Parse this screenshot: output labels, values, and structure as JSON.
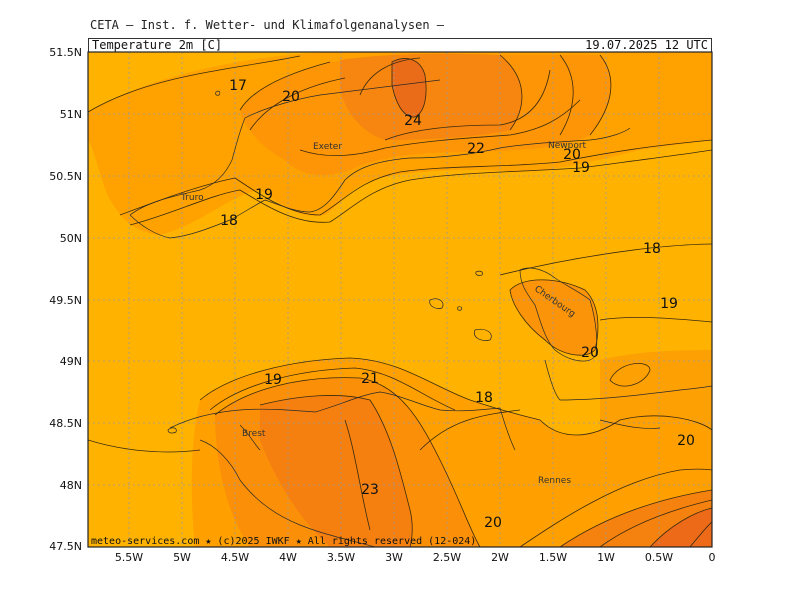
{
  "header": {
    "title": "CETA — Inst. f. Wetter- und Klimafolgenanalysen —",
    "parameter": "Temperature_2m_[C]",
    "valid_time": "19.07.2025  12 UTC"
  },
  "axes": {
    "lat_labels": [
      "51.5N",
      "51N",
      "50.5N",
      "50N",
      "49.5N",
      "49N",
      "48.5N",
      "48N",
      "47.5N"
    ],
    "lon_labels": [
      "5.5W",
      "5W",
      "4.5W",
      "4W",
      "3.5W",
      "3W",
      "2.5W",
      "2W",
      "1.5W",
      "1W",
      "0.5W",
      "0"
    ]
  },
  "contour_labels": [
    "17",
    "20",
    "24",
    "22",
    "20",
    "19",
    "19",
    "18",
    "18",
    "19",
    "20",
    "19",
    "21",
    "18",
    "20",
    "23",
    "20"
  ],
  "cities": [
    "Truro",
    "Exeter",
    "Newport",
    "Cherbourg",
    "Brest",
    "Rennes"
  ],
  "footer": "meteo-services.com ★ (c)2025 IWKF ★ All rights reserved (12-024)",
  "colors": {
    "sea": "#FFB300",
    "t18_20": "#FF9F00",
    "t20_22": "#FB8C10",
    "t22_24": "#F07818",
    "t24plus": "#E86218"
  }
}
